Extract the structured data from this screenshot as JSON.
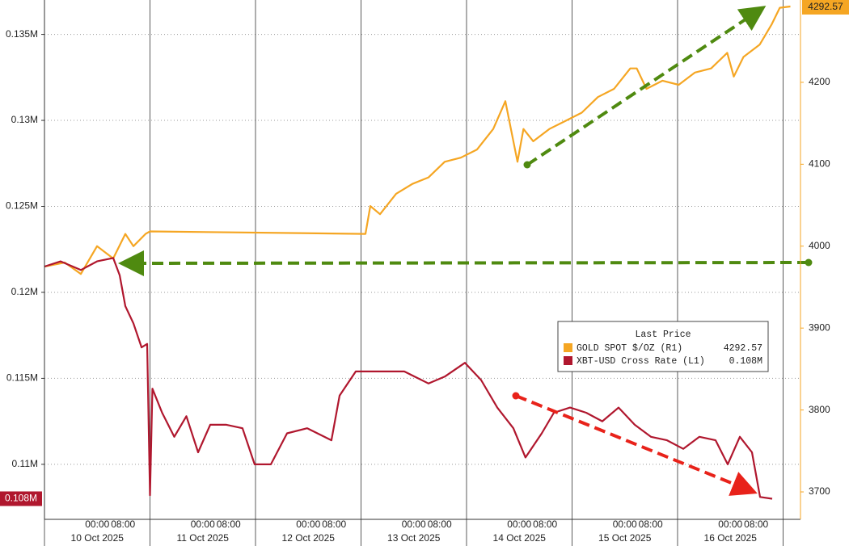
{
  "chart_data": {
    "type": "line",
    "legend_title": "Last Price",
    "x_day_labels": [
      "10 Oct 2025",
      "11 Oct 2025",
      "12 Oct 2025",
      "13 Oct 2025",
      "14 Oct 2025",
      "15 Oct 2025",
      "16 Oct 2025"
    ],
    "x_time_labels": [
      "00:00",
      "08:00"
    ],
    "xlim": [
      0,
      7.165
    ],
    "ylim": [
      0.1068,
      0.137
    ],
    "yticks": [
      {
        "value": 0.11,
        "label": "0.11M"
      },
      {
        "value": 0.115,
        "label": "0.115M"
      },
      {
        "value": 0.12,
        "label": "0.12M"
      },
      {
        "value": 0.125,
        "label": "0.125M"
      },
      {
        "value": 0.13,
        "label": "0.13M"
      },
      {
        "value": 0.135,
        "label": "0.135M"
      }
    ],
    "y2lim": [
      3666.5,
      4300.5
    ],
    "y2ticks": [
      3700,
      3800,
      3900,
      4000,
      4100,
      4200
    ],
    "grid": true,
    "series": [
      {
        "name": "GOLD SPOT $/OZ  (R1)",
        "color": "#f5a623",
        "axis": "y2",
        "last_label": "4292.57",
        "x": [
          0,
          0.192,
          0.345,
          0.498,
          0.651,
          0.766,
          0.843,
          0.958,
          1.0,
          3.042,
          3.088,
          3.18,
          3.333,
          3.487,
          3.64,
          3.793,
          3.946,
          4.1,
          4.253,
          4.368,
          4.483,
          4.54,
          4.632,
          4.785,
          4.939,
          5.092,
          5.245,
          5.398,
          5.552,
          5.613,
          5.705,
          5.858,
          6.011,
          6.165,
          6.318,
          6.471,
          6.533,
          6.625,
          6.778,
          6.893,
          6.969,
          7.069
        ],
        "values": [
          3975,
          3980,
          3966,
          4000,
          3985,
          4015,
          4000,
          4015,
          4018,
          4015,
          4049,
          4039,
          4064,
          4076,
          4084,
          4103,
          4108,
          4118,
          4143,
          4177,
          4103,
          4143,
          4128,
          4143,
          4153,
          4163,
          4182,
          4192,
          4217,
          4217,
          4192,
          4202,
          4197,
          4212,
          4217,
          4236,
          4207,
          4231,
          4246,
          4271,
          4291,
          4292.57
        ]
      },
      {
        "name": "XBT-USD Cross Rate  (L1)",
        "color": "#b0172e",
        "last_label": "0.108M",
        "x": [
          0,
          0.153,
          0.345,
          0.498,
          0.651,
          0.713,
          0.766,
          0.843,
          0.92,
          0.973,
          1.0,
          1.023,
          1.115,
          1.23,
          1.345,
          1.456,
          1.571,
          1.724,
          1.877,
          1.992,
          2.146,
          2.299,
          2.49,
          2.72,
          2.797,
          2.95,
          3.18,
          3.41,
          3.64,
          3.793,
          3.985,
          4.138,
          4.291,
          4.444,
          4.559,
          4.713,
          4.828,
          4.981,
          5.134,
          5.287,
          5.441,
          5.594,
          5.747,
          5.9,
          6.054,
          6.207,
          6.36,
          6.475,
          6.59,
          6.705,
          6.782,
          6.897
        ],
        "values": [
          0.1215,
          0.1218,
          0.1213,
          0.1218,
          0.122,
          0.121,
          0.1192,
          0.1182,
          0.1168,
          0.117,
          0.1082,
          0.1144,
          0.113,
          0.1116,
          0.1128,
          0.1107,
          0.1123,
          0.1123,
          0.1121,
          0.11,
          0.11,
          0.1118,
          0.1121,
          0.1114,
          0.114,
          0.1154,
          0.1154,
          0.1154,
          0.1147,
          0.1151,
          0.1159,
          0.1149,
          0.1133,
          0.1121,
          0.1104,
          0.1118,
          0.113,
          0.1133,
          0.113,
          0.1125,
          0.1133,
          0.1123,
          0.1116,
          0.1114,
          0.1109,
          0.1116,
          0.1114,
          0.11,
          0.1116,
          0.1107,
          0.1081,
          0.108
        ]
      }
    ]
  }
}
